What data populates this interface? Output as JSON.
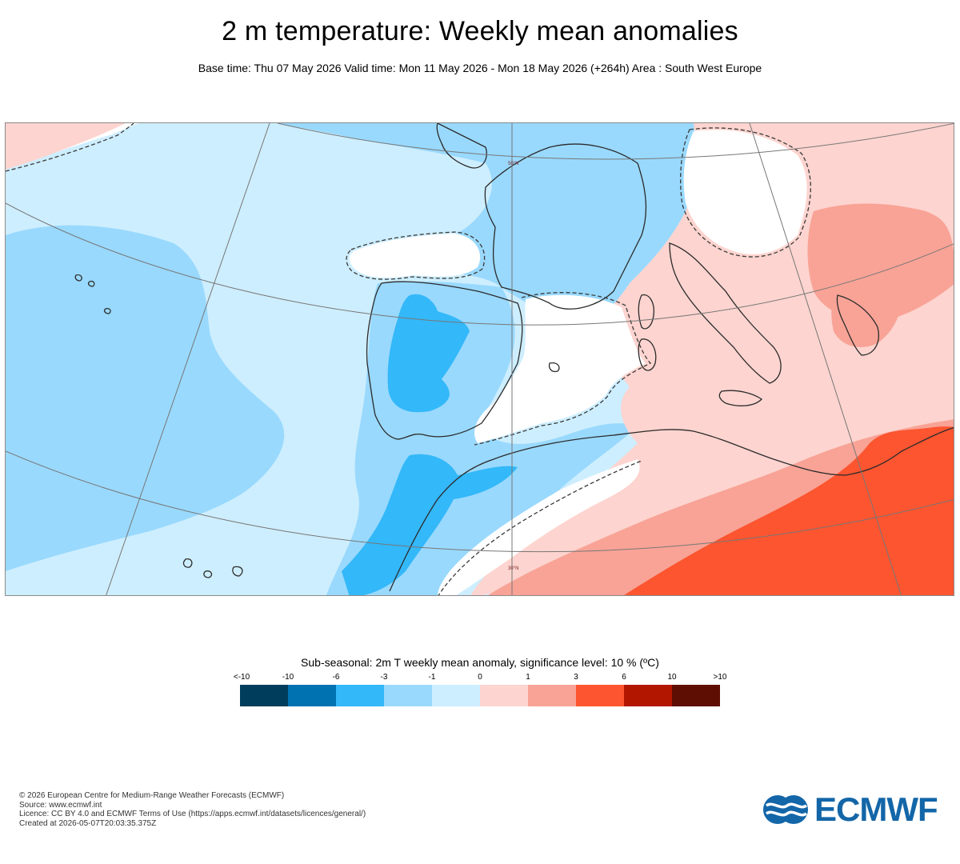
{
  "header": {
    "title": "2 m temperature: Weekly mean anomalies",
    "subtitle": "Base time: Thu 07 May 2026 Valid time: Mon 11 May 2026 - Mon 18 May 2026 (+264h) Area : South West Europe"
  },
  "map": {
    "lat_labels": [
      "50°N",
      "30°N"
    ],
    "colors": {
      "lt_m10": "#003d5c",
      "m10_m6": "#0072b1",
      "m6_m3": "#33b8f9",
      "m3_m1": "#99d9fd",
      "m1_0": "#cdeefe",
      "0_1": "#fdd4cf",
      "1_3": "#f8a396",
      "3_6": "#fc5530",
      "6_10": "#b31600",
      "gt_10": "#5f0e04",
      "insignificant": "#ffffff"
    }
  },
  "legend": {
    "title": "Sub-seasonal: 2m T weekly mean anomaly, significance level: 10 % (ºC)",
    "ticks": [
      "<-10",
      "-10",
      "-6",
      "-3",
      "-1",
      "0",
      "1",
      "3",
      "6",
      "10",
      ">10"
    ],
    "swatches": [
      "#003d5c",
      "#0072b1",
      "#33b8f9",
      "#99d9fd",
      "#cdeefe",
      "#fdd4cf",
      "#f8a396",
      "#fc5530",
      "#b31600",
      "#5f0e04"
    ]
  },
  "footer": {
    "line1": "© 2026 European Centre for Medium-Range Weather Forecasts (ECMWF)",
    "line2": "Source: www.ecmwf.int",
    "line3": "Licence: CC BY 4.0 and ECMWF Terms of Use (https://apps.ecmwf.int/datasets/licences/general/)",
    "line4": "Created at 2026-05-07T20:03:35.375Z"
  },
  "logo": {
    "text": "ECMWF"
  }
}
